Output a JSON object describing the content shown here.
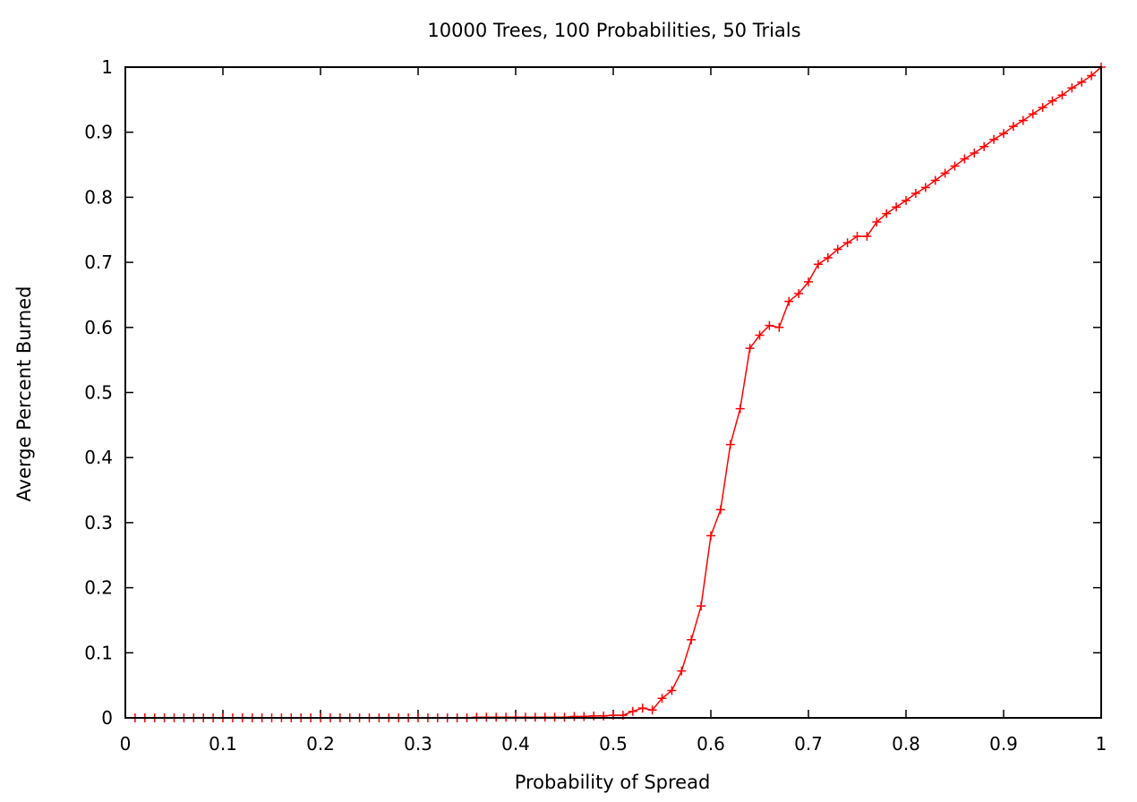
{
  "chart_data": {
    "type": "line",
    "title": "10000 Trees, 100 Probabilities, 50 Trials",
    "xlabel": "Probability of Spread",
    "ylabel": "Averge Percent Burned",
    "xlim": [
      0,
      1
    ],
    "ylim": [
      0,
      1
    ],
    "x_ticks": [
      "0",
      "0.1",
      "0.2",
      "0.3",
      "0.4",
      "0.5",
      "0.6",
      "0.7",
      "0.8",
      "0.9",
      "1"
    ],
    "y_ticks": [
      "0",
      "0.1",
      "0.2",
      "0.3",
      "0.4",
      "0.5",
      "0.6",
      "0.7",
      "0.8",
      "0.9",
      "1"
    ],
    "grid": false,
    "series": [
      {
        "color": "#ff0000",
        "marker": "plus",
        "x": [
          0.01,
          0.02,
          0.03,
          0.04,
          0.05,
          0.06,
          0.07,
          0.08,
          0.09,
          0.1,
          0.11,
          0.12,
          0.13,
          0.14,
          0.15,
          0.16,
          0.17,
          0.18,
          0.19,
          0.2,
          0.21,
          0.22,
          0.23,
          0.24,
          0.25,
          0.26,
          0.27,
          0.28,
          0.29,
          0.3,
          0.31,
          0.32,
          0.33,
          0.34,
          0.35,
          0.36,
          0.37,
          0.38,
          0.39,
          0.4,
          0.41,
          0.42,
          0.43,
          0.44,
          0.45,
          0.46,
          0.47,
          0.48,
          0.49,
          0.5,
          0.51,
          0.52,
          0.53,
          0.54,
          0.55,
          0.56,
          0.57,
          0.58,
          0.59,
          0.6,
          0.61,
          0.62,
          0.63,
          0.64,
          0.65,
          0.66,
          0.67,
          0.68,
          0.69,
          0.7,
          0.71,
          0.72,
          0.73,
          0.74,
          0.75,
          0.76,
          0.77,
          0.78,
          0.79,
          0.8,
          0.81,
          0.82,
          0.83,
          0.84,
          0.85,
          0.86,
          0.87,
          0.88,
          0.89,
          0.9,
          0.91,
          0.92,
          0.93,
          0.94,
          0.95,
          0.96,
          0.97,
          0.98,
          0.99,
          1.0
        ],
        "y": [
          0,
          0,
          0,
          0,
          0,
          0,
          0,
          0,
          0,
          0,
          0,
          0,
          0,
          0,
          0,
          0,
          0,
          0,
          0,
          0,
          0,
          0,
          0,
          0,
          0,
          0,
          0,
          0,
          0,
          0,
          0,
          0,
          0,
          0,
          0,
          0.001,
          0.001,
          0.001,
          0.001,
          0.001,
          0.001,
          0.001,
          0.001,
          0.001,
          0.001,
          0.002,
          0.002,
          0.003,
          0.003,
          0.004,
          0.004,
          0.01,
          0.015,
          0.012,
          0.03,
          0.042,
          0.072,
          0.12,
          0.172,
          0.28,
          0.32,
          0.42,
          0.475,
          0.568,
          0.588,
          0.603,
          0.6,
          0.64,
          0.652,
          0.67,
          0.697,
          0.707,
          0.72,
          0.73,
          0.74,
          0.74,
          0.762,
          0.775,
          0.785,
          0.795,
          0.806,
          0.815,
          0.826,
          0.837,
          0.848,
          0.859,
          0.868,
          0.878,
          0.889,
          0.898,
          0.909,
          0.918,
          0.928,
          0.938,
          0.948,
          0.957,
          0.968,
          0.977,
          0.987,
          1.0
        ]
      }
    ]
  }
}
